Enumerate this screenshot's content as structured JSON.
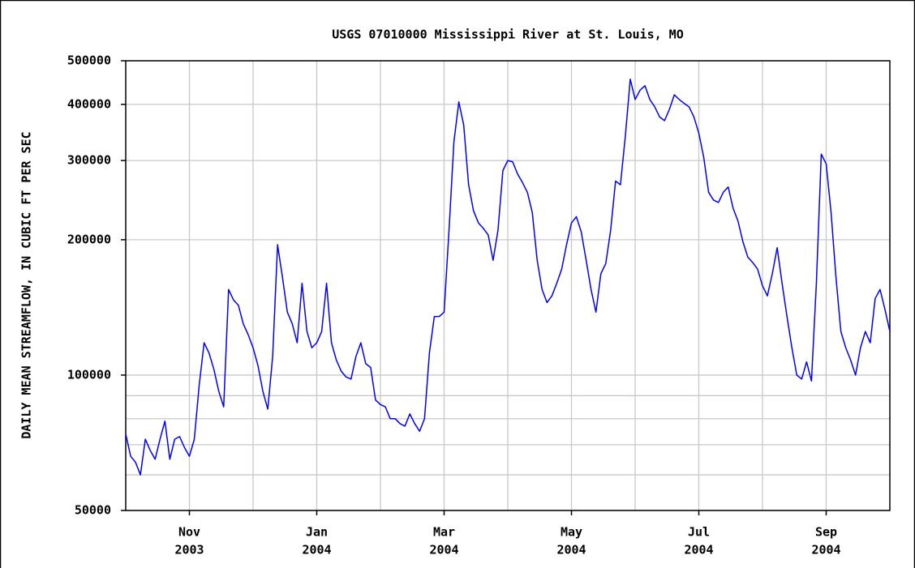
{
  "chart_data": {
    "type": "line",
    "title": "USGS 07010000 Mississippi River at St. Louis, MO",
    "y_label": "DAILY MEAN STREAMFLOW, IN CUBIC FT PER SEC",
    "log_scale": true,
    "grid": true,
    "color": "#0000ff",
    "xlim": [
      "2003-10",
      "2004-09"
    ],
    "xticks": [
      {
        "value": "2003-11",
        "label": [
          "Nov",
          "2003"
        ]
      },
      {
        "value": "2004-01",
        "label": [
          "Jan",
          "2004"
        ]
      },
      {
        "value": "2004-03",
        "label": [
          "Mar",
          "2004"
        ]
      },
      {
        "value": "2004-05",
        "label": [
          "May",
          "2004"
        ]
      },
      {
        "value": "2004-07",
        "label": [
          "Jul",
          "2004"
        ]
      },
      {
        "value": "2004-09",
        "label": [
          "Sep",
          "2004"
        ]
      }
    ],
    "x_minor_ticks": [
      "2003-12",
      "2004-02",
      "2004-04",
      "2004-06",
      "2004-08"
    ],
    "ylim": [
      50000,
      500000
    ],
    "yticks": [
      50000,
      100000,
      200000,
      300000,
      400000,
      500000
    ],
    "y_minor_ticks": [
      60000,
      70000,
      80000,
      90000
    ],
    "values": [
      74000,
      66000,
      64000,
      60000,
      72000,
      68000,
      65000,
      72000,
      79000,
      65000,
      72000,
      73000,
      69000,
      66000,
      72000,
      95000,
      118000,
      112000,
      103000,
      92000,
      85000,
      155000,
      147000,
      143000,
      130000,
      123000,
      115000,
      105000,
      92000,
      84000,
      110000,
      195000,
      165000,
      138000,
      130000,
      118000,
      160000,
      125000,
      115000,
      118000,
      125000,
      160000,
      118000,
      108000,
      102000,
      99000,
      98000,
      110000,
      118000,
      106000,
      104000,
      88000,
      86000,
      85000,
      80000,
      80000,
      78000,
      77000,
      82000,
      78000,
      75000,
      80000,
      112000,
      135000,
      135000,
      138000,
      210000,
      330000,
      405000,
      360000,
      265000,
      232000,
      218000,
      212000,
      205000,
      180000,
      210000,
      285000,
      300000,
      298000,
      280000,
      268000,
      255000,
      230000,
      180000,
      155000,
      145000,
      150000,
      160000,
      172000,
      195000,
      218000,
      225000,
      208000,
      180000,
      155000,
      138000,
      168000,
      177000,
      210000,
      270000,
      265000,
      340000,
      455000,
      410000,
      430000,
      440000,
      410000,
      395000,
      375000,
      368000,
      390000,
      420000,
      410000,
      402000,
      395000,
      375000,
      345000,
      305000,
      255000,
      245000,
      242000,
      255000,
      262000,
      235000,
      220000,
      198000,
      183000,
      178000,
      172000,
      158000,
      150000,
      168000,
      192000,
      160000,
      135000,
      115000,
      100000,
      98000,
      107000,
      97000,
      160000,
      310000,
      295000,
      230000,
      165000,
      125000,
      115000,
      108000,
      100000,
      115000,
      125000,
      118000,
      148000,
      155000,
      140000,
      125000
    ]
  }
}
